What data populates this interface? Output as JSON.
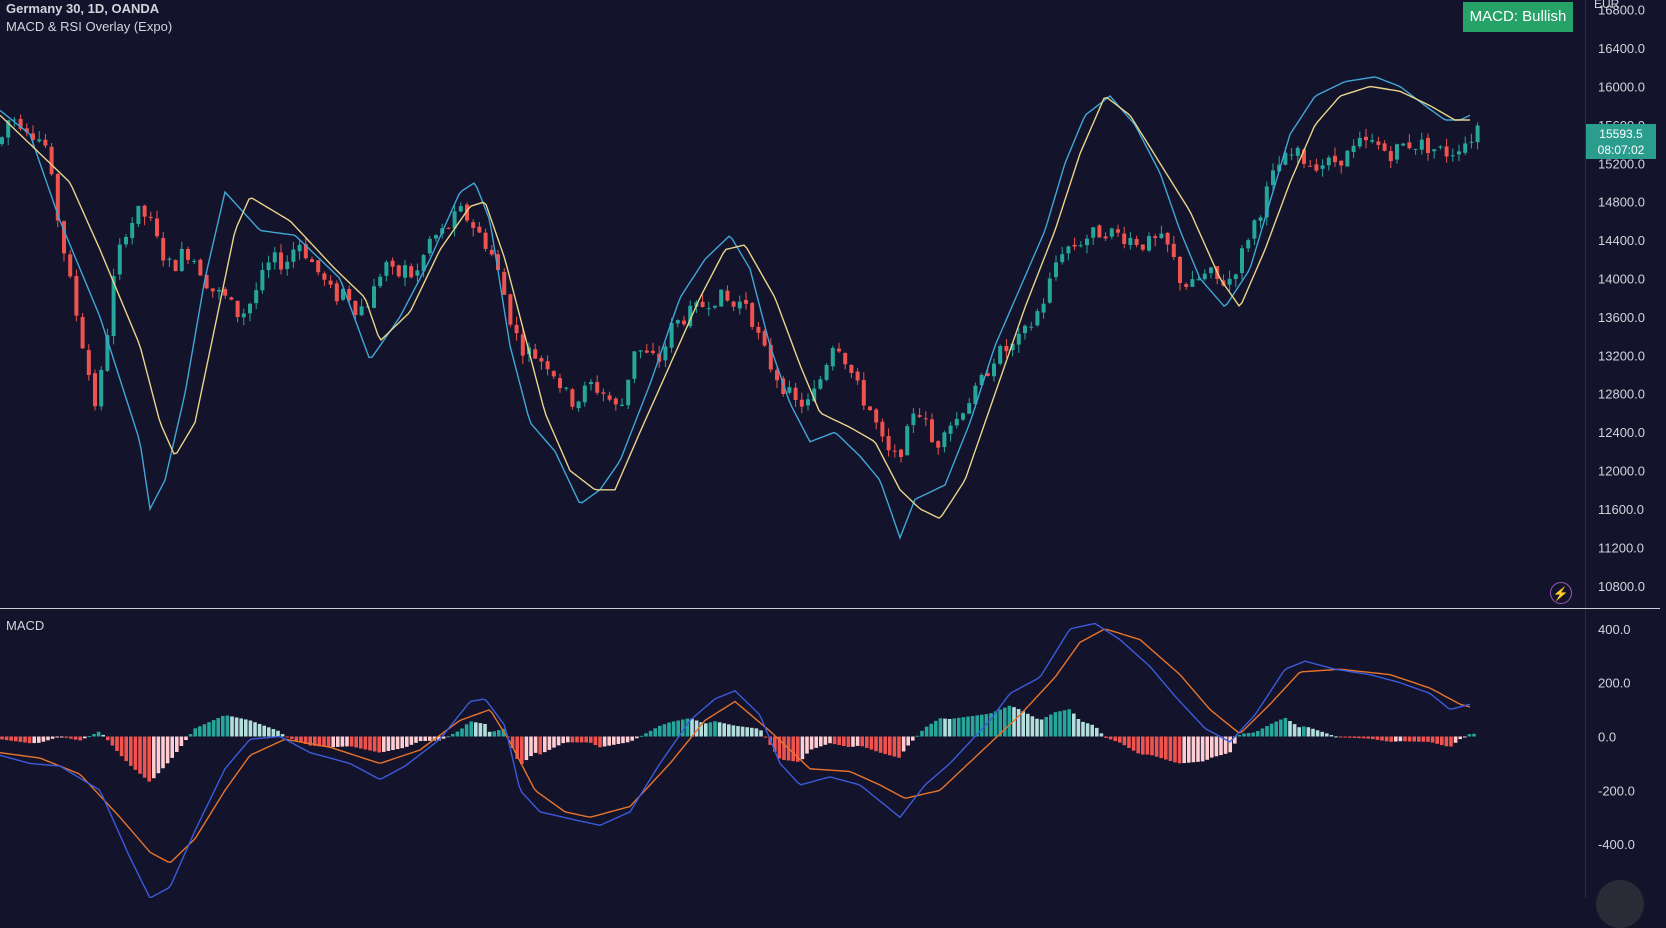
{
  "header": {
    "symbol_line": "Germany 30, 1D, OANDA",
    "indicator_line": "MACD & RSI Overlay (Expo)",
    "currency": "EUR",
    "macd_badge": "MACD: Bullish"
  },
  "last_price": {
    "value": "15593.5",
    "countdown": "08:07:02"
  },
  "macd_pane": {
    "title": "MACD"
  },
  "colors": {
    "background": "#13132b",
    "bull": "#26a69a",
    "bear": "#ef5350",
    "fast_line": "#3fa7d6",
    "slow_line": "#e8d58a",
    "macd_line": "#3b5bdb",
    "signal_line": "#e8742c",
    "hist_bull_strong": "#26a69a",
    "hist_bull_weak": "#b2dfdb",
    "hist_bear_strong": "#ef5350",
    "hist_bear_weak": "#ffcdd2",
    "badge": "#26a269"
  },
  "icons": {
    "lightning": "lightning-icon"
  },
  "chart_data": [
    {
      "type": "candlestick",
      "title": "Germany 30, 1D, OANDA",
      "ylabel": "EUR",
      "ylim": [
        10600,
        16900
      ],
      "ticks": [
        "16800.0",
        "16400.0",
        "16000.0",
        "15600.0",
        "15200.0",
        "14800.0",
        "14400.0",
        "14000.0",
        "13600.0",
        "13200.0",
        "12800.0",
        "12400.0",
        "12000.0",
        "11600.0",
        "11200.0",
        "10800.0"
      ],
      "anchors": [
        [
          0,
          15400
        ],
        [
          10,
          15700
        ],
        [
          25,
          15600
        ],
        [
          45,
          15400
        ],
        [
          60,
          14500
        ],
        [
          75,
          13700
        ],
        [
          85,
          13200
        ],
        [
          95,
          12700
        ],
        [
          100,
          12900
        ],
        [
          108,
          13500
        ],
        [
          115,
          14100
        ],
        [
          125,
          14500
        ],
        [
          140,
          14700
        ],
        [
          150,
          14600
        ],
        [
          160,
          14300
        ],
        [
          172,
          14100
        ],
        [
          185,
          14300
        ],
        [
          195,
          14200
        ],
        [
          210,
          13900
        ],
        [
          225,
          13800
        ],
        [
          240,
          13600
        ],
        [
          250,
          13750
        ],
        [
          262,
          14000
        ],
        [
          272,
          14200
        ],
        [
          285,
          14150
        ],
        [
          298,
          14400
        ],
        [
          310,
          14200
        ],
        [
          325,
          13950
        ],
        [
          335,
          13800
        ],
        [
          345,
          13900
        ],
        [
          355,
          13700
        ],
        [
          365,
          13700
        ],
        [
          375,
          13900
        ],
        [
          385,
          14200
        ],
        [
          395,
          14000
        ],
        [
          405,
          14100
        ],
        [
          415,
          14000
        ],
        [
          430,
          14400
        ],
        [
          445,
          14500
        ],
        [
          460,
          14700
        ],
        [
          470,
          14600
        ],
        [
          480,
          14450
        ],
        [
          490,
          14300
        ],
        [
          500,
          14000
        ],
        [
          510,
          13600
        ],
        [
          520,
          13300
        ],
        [
          535,
          13200
        ],
        [
          550,
          13100
        ],
        [
          565,
          12800
        ],
        [
          575,
          12700
        ],
        [
          590,
          12900
        ],
        [
          605,
          12800
        ],
        [
          620,
          12600
        ],
        [
          635,
          13300
        ],
        [
          645,
          13200
        ],
        [
          660,
          13150
        ],
        [
          672,
          13500
        ],
        [
          685,
          13600
        ],
        [
          700,
          13700
        ],
        [
          712,
          13800
        ],
        [
          722,
          13800
        ],
        [
          735,
          13700
        ],
        [
          745,
          13800
        ],
        [
          758,
          13400
        ],
        [
          770,
          13100
        ],
        [
          782,
          12900
        ],
        [
          795,
          12700
        ],
        [
          810,
          12700
        ],
        [
          822,
          13000
        ],
        [
          835,
          13400
        ],
        [
          848,
          13100
        ],
        [
          860,
          12800
        ],
        [
          872,
          12600
        ],
        [
          882,
          12300
        ],
        [
          892,
          12100
        ],
        [
          900,
          12200
        ],
        [
          908,
          12400
        ],
        [
          915,
          12700
        ],
        [
          925,
          12500
        ],
        [
          935,
          12200
        ],
        [
          945,
          12500
        ],
        [
          955,
          12500
        ],
        [
          965,
          12700
        ],
        [
          975,
          12800
        ],
        [
          985,
          13000
        ],
        [
          995,
          13200
        ],
        [
          1005,
          13250
        ],
        [
          1015,
          13300
        ],
        [
          1030,
          13500
        ],
        [
          1045,
          13800
        ],
        [
          1060,
          14300
        ],
        [
          1075,
          14350
        ],
        [
          1090,
          14450
        ],
        [
          1105,
          14500
        ],
        [
          1120,
          14450
        ],
        [
          1135,
          14400
        ],
        [
          1145,
          14350
        ],
        [
          1160,
          14400
        ],
        [
          1170,
          14300
        ],
        [
          1180,
          14000
        ],
        [
          1190,
          13900
        ],
        [
          1200,
          14000
        ],
        [
          1210,
          14050
        ],
        [
          1220,
          13950
        ],
        [
          1230,
          14000
        ],
        [
          1240,
          14200
        ],
        [
          1250,
          14500
        ],
        [
          1260,
          14700
        ],
        [
          1270,
          15000
        ],
        [
          1280,
          15200
        ],
        [
          1295,
          15300
        ],
        [
          1310,
          15200
        ],
        [
          1330,
          15200
        ],
        [
          1350,
          15300
        ],
        [
          1360,
          15400
        ],
        [
          1375,
          15400
        ],
        [
          1390,
          15300
        ],
        [
          1405,
          15400
        ],
        [
          1420,
          15400
        ],
        [
          1435,
          15350
        ],
        [
          1450,
          15300
        ],
        [
          1460,
          15400
        ],
        [
          1470,
          15450
        ],
        [
          1478,
          15593.5
        ]
      ],
      "fast_line_anchors": [
        [
          0,
          15750
        ],
        [
          30,
          15500
        ],
        [
          60,
          14600
        ],
        [
          100,
          13600
        ],
        [
          140,
          12300
        ],
        [
          150,
          11600
        ],
        [
          165,
          11900
        ],
        [
          185,
          12800
        ],
        [
          205,
          14000
        ],
        [
          225,
          14900
        ],
        [
          260,
          14500
        ],
        [
          295,
          14450
        ],
        [
          340,
          14000
        ],
        [
          370,
          13150
        ],
        [
          400,
          13600
        ],
        [
          430,
          14200
        ],
        [
          460,
          14900
        ],
        [
          475,
          15000
        ],
        [
          490,
          14600
        ],
        [
          510,
          13300
        ],
        [
          530,
          12500
        ],
        [
          555,
          12200
        ],
        [
          580,
          11650
        ],
        [
          600,
          11800
        ],
        [
          620,
          12100
        ],
        [
          650,
          12900
        ],
        [
          680,
          13800
        ],
        [
          705,
          14200
        ],
        [
          730,
          14450
        ],
        [
          750,
          14100
        ],
        [
          770,
          13300
        ],
        [
          790,
          12700
        ],
        [
          810,
          12300
        ],
        [
          835,
          12400
        ],
        [
          860,
          12150
        ],
        [
          880,
          11900
        ],
        [
          900,
          11300
        ],
        [
          915,
          11700
        ],
        [
          945,
          11850
        ],
        [
          970,
          12500
        ],
        [
          995,
          13300
        ],
        [
          1020,
          13900
        ],
        [
          1045,
          14500
        ],
        [
          1065,
          15200
        ],
        [
          1085,
          15700
        ],
        [
          1110,
          15900
        ],
        [
          1135,
          15600
        ],
        [
          1160,
          15100
        ],
        [
          1180,
          14500
        ],
        [
          1200,
          14000
        ],
        [
          1225,
          13700
        ],
        [
          1250,
          14100
        ],
        [
          1270,
          14800
        ],
        [
          1290,
          15500
        ],
        [
          1315,
          15900
        ],
        [
          1345,
          16050
        ],
        [
          1375,
          16100
        ],
        [
          1400,
          16000
        ],
        [
          1425,
          15800
        ],
        [
          1445,
          15650
        ],
        [
          1460,
          15650
        ],
        [
          1470,
          15700
        ]
      ],
      "slow_line_anchors": [
        [
          0,
          15700
        ],
        [
          30,
          15400
        ],
        [
          70,
          15000
        ],
        [
          100,
          14300
        ],
        [
          140,
          13300
        ],
        [
          160,
          12500
        ],
        [
          175,
          12150
        ],
        [
          195,
          12500
        ],
        [
          215,
          13500
        ],
        [
          235,
          14500
        ],
        [
          250,
          14850
        ],
        [
          290,
          14600
        ],
        [
          335,
          14100
        ],
        [
          365,
          13800
        ],
        [
          380,
          13350
        ],
        [
          410,
          13650
        ],
        [
          440,
          14300
        ],
        [
          470,
          14750
        ],
        [
          485,
          14800
        ],
        [
          505,
          14200
        ],
        [
          525,
          13400
        ],
        [
          545,
          12600
        ],
        [
          570,
          12000
        ],
        [
          595,
          11800
        ],
        [
          615,
          11800
        ],
        [
          640,
          12400
        ],
        [
          670,
          13100
        ],
        [
          700,
          13800
        ],
        [
          725,
          14300
        ],
        [
          745,
          14350
        ],
        [
          775,
          13800
        ],
        [
          800,
          13100
        ],
        [
          820,
          12600
        ],
        [
          850,
          12450
        ],
        [
          875,
          12300
        ],
        [
          900,
          11800
        ],
        [
          920,
          11600
        ],
        [
          940,
          11500
        ],
        [
          965,
          11900
        ],
        [
          995,
          12800
        ],
        [
          1025,
          13700
        ],
        [
          1055,
          14500
        ],
        [
          1080,
          15300
        ],
        [
          1105,
          15900
        ],
        [
          1130,
          15700
        ],
        [
          1160,
          15200
        ],
        [
          1190,
          14700
        ],
        [
          1220,
          14000
        ],
        [
          1240,
          13700
        ],
        [
          1265,
          14300
        ],
        [
          1290,
          15000
        ],
        [
          1315,
          15600
        ],
        [
          1340,
          15900
        ],
        [
          1370,
          16000
        ],
        [
          1400,
          15950
        ],
        [
          1430,
          15800
        ],
        [
          1455,
          15650
        ],
        [
          1470,
          15650
        ]
      ]
    },
    {
      "type": "macd",
      "title": "MACD",
      "ylim": [
        -600,
        470
      ],
      "ticks": [
        "400.0",
        "200.0",
        "0.0",
        "-200.0",
        "-400.0"
      ],
      "macd_anchors": [
        [
          0,
          -70
        ],
        [
          30,
          -100
        ],
        [
          60,
          -110
        ],
        [
          100,
          -200
        ],
        [
          130,
          -450
        ],
        [
          150,
          -600
        ],
        [
          170,
          -560
        ],
        [
          195,
          -350
        ],
        [
          225,
          -120
        ],
        [
          250,
          -10
        ],
        [
          280,
          0
        ],
        [
          310,
          -60
        ],
        [
          350,
          -100
        ],
        [
          380,
          -160
        ],
        [
          405,
          -110
        ],
        [
          440,
          -10
        ],
        [
          470,
          130
        ],
        [
          485,
          140
        ],
        [
          505,
          40
        ],
        [
          520,
          -200
        ],
        [
          540,
          -280
        ],
        [
          575,
          -310
        ],
        [
          600,
          -330
        ],
        [
          630,
          -280
        ],
        [
          660,
          -100
        ],
        [
          690,
          60
        ],
        [
          715,
          140
        ],
        [
          735,
          170
        ],
        [
          760,
          80
        ],
        [
          780,
          -100
        ],
        [
          800,
          -180
        ],
        [
          830,
          -150
        ],
        [
          860,
          -180
        ],
        [
          880,
          -240
        ],
        [
          900,
          -300
        ],
        [
          925,
          -180
        ],
        [
          950,
          -100
        ],
        [
          990,
          60
        ],
        [
          1010,
          160
        ],
        [
          1040,
          220
        ],
        [
          1070,
          400
        ],
        [
          1095,
          420
        ],
        [
          1120,
          360
        ],
        [
          1150,
          260
        ],
        [
          1175,
          150
        ],
        [
          1205,
          30
        ],
        [
          1230,
          -20
        ],
        [
          1255,
          80
        ],
        [
          1285,
          250
        ],
        [
          1305,
          280
        ],
        [
          1335,
          250
        ],
        [
          1370,
          230
        ],
        [
          1400,
          200
        ],
        [
          1430,
          160
        ],
        [
          1450,
          100
        ],
        [
          1470,
          120
        ]
      ],
      "signal_anchors": [
        [
          0,
          -60
        ],
        [
          40,
          -80
        ],
        [
          80,
          -140
        ],
        [
          120,
          -300
        ],
        [
          150,
          -430
        ],
        [
          170,
          -470
        ],
        [
          195,
          -380
        ],
        [
          225,
          -200
        ],
        [
          250,
          -70
        ],
        [
          285,
          -10
        ],
        [
          330,
          -40
        ],
        [
          380,
          -100
        ],
        [
          420,
          -50
        ],
        [
          460,
          60
        ],
        [
          490,
          100
        ],
        [
          510,
          -20
        ],
        [
          535,
          -200
        ],
        [
          565,
          -280
        ],
        [
          590,
          -300
        ],
        [
          630,
          -260
        ],
        [
          670,
          -100
        ],
        [
          705,
          60
        ],
        [
          735,
          130
        ],
        [
          770,
          20
        ],
        [
          810,
          -120
        ],
        [
          850,
          -130
        ],
        [
          880,
          -180
        ],
        [
          905,
          -230
        ],
        [
          940,
          -200
        ],
        [
          980,
          -60
        ],
        [
          1020,
          80
        ],
        [
          1055,
          220
        ],
        [
          1080,
          350
        ],
        [
          1105,
          400
        ],
        [
          1140,
          360
        ],
        [
          1180,
          230
        ],
        [
          1210,
          100
        ],
        [
          1240,
          10
        ],
        [
          1270,
          120
        ],
        [
          1300,
          240
        ],
        [
          1340,
          250
        ],
        [
          1390,
          230
        ],
        [
          1430,
          180
        ],
        [
          1460,
          120
        ],
        [
          1470,
          110
        ]
      ]
    }
  ]
}
